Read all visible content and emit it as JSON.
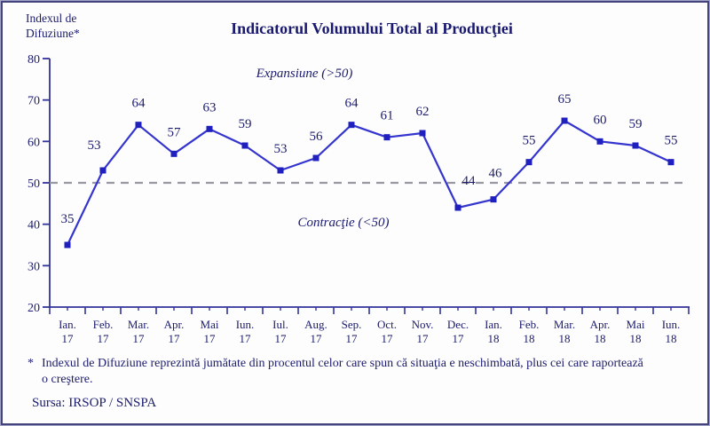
{
  "header": {
    "axis_title": "Indexul de\nDifuziune*",
    "title": "Indicatorul Volumului Total al Producţiei"
  },
  "annotations": {
    "expansion": "Expansiune (>50)",
    "contraction": "Contracţie (<50)"
  },
  "footnote": {
    "marker": "*",
    "text": "Indexul de Difuziune reprezintă jumătate din procentul celor care spun că situaţia e neschimbată, plus cei care raportează o creştere."
  },
  "source": "Sursa: IRSOP / SNSPA",
  "colors": {
    "line": "#3434ce",
    "marker": "#2020be",
    "text_navy": "#1c1c6e",
    "axis": "#333399",
    "dashed": "#9999a3",
    "frame_border": "#45457e"
  },
  "chart_data": {
    "type": "line",
    "title": "Indicatorul Volumului Total al Producţiei",
    "ylabel": "Indexul de Difuziune*",
    "xlabel": "",
    "categories": [
      "Ian. 17",
      "Feb. 17",
      "Mar. 17",
      "Apr. 17",
      "Mai 17",
      "Iun. 17",
      "Iul. 17",
      "Aug. 17",
      "Sep. 17",
      "Oct. 17",
      "Nov. 17",
      "Dec. 17",
      "Ian. 18",
      "Feb. 18",
      "Mar. 18",
      "Apr. 18",
      "Mai 18",
      "Iun. 18"
    ],
    "values": [
      35,
      53,
      64,
      57,
      63,
      59,
      53,
      56,
      64,
      61,
      62,
      44,
      46,
      55,
      65,
      60,
      59,
      55
    ],
    "ylim": [
      20,
      80
    ],
    "ytick_step": 10,
    "reference_line": 50,
    "marker_shape": "square",
    "grid": false,
    "legend": false,
    "annotations": [
      "Expansiune (>50)",
      "Contracţie (<50)"
    ]
  }
}
